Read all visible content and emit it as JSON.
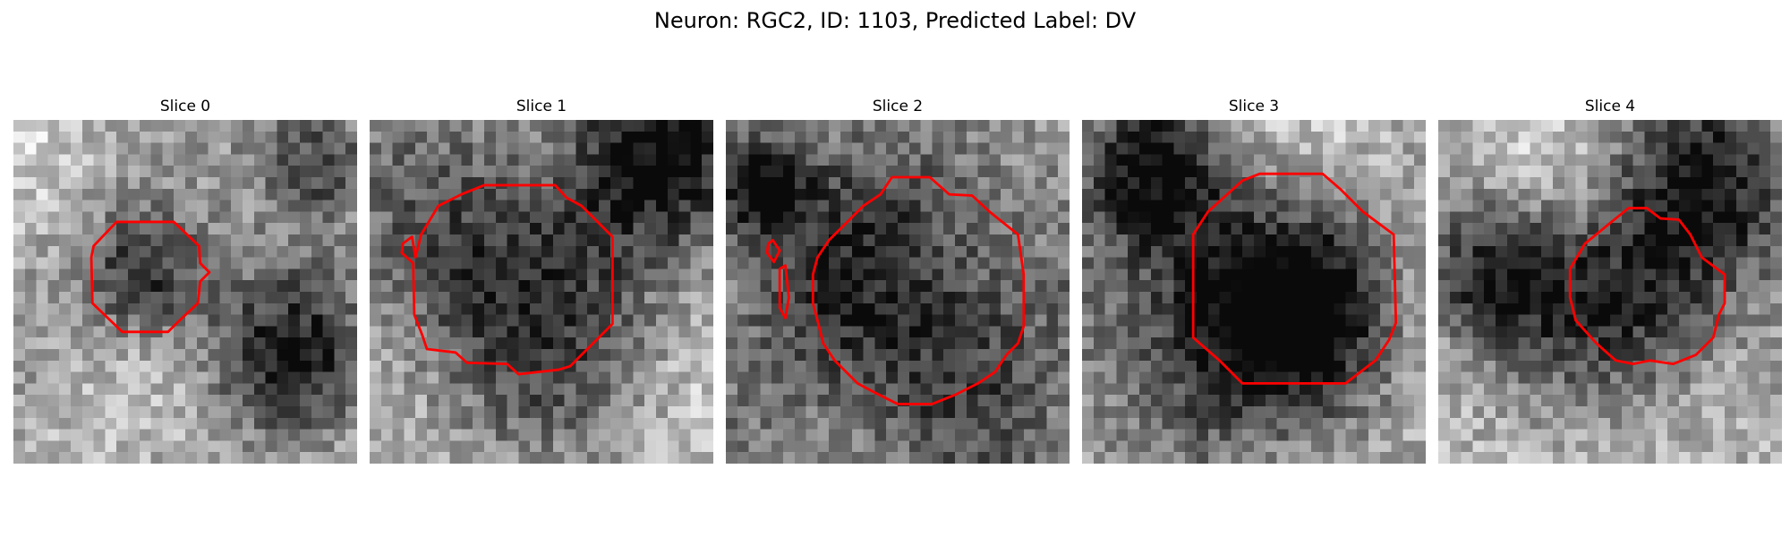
{
  "figure": {
    "title": "Neuron: RGC2, ID: 1103, Predicted Label: DV",
    "contour_color": "#ff0000"
  },
  "slices": [
    {
      "title": "Slice 0",
      "seed": 11,
      "dark_blobs": [
        [
          0.78,
          0.68,
          0.18
        ],
        [
          0.38,
          0.45,
          0.14
        ],
        [
          0.88,
          0.12,
          0.14
        ]
      ]
    },
    {
      "title": "Slice 1",
      "seed": 23,
      "dark_blobs": [
        [
          0.42,
          0.45,
          0.32
        ],
        [
          0.82,
          0.08,
          0.18
        ]
      ]
    },
    {
      "title": "Slice 2",
      "seed": 37,
      "dark_blobs": [
        [
          0.52,
          0.55,
          0.42
        ],
        [
          0.08,
          0.2,
          0.1
        ]
      ]
    },
    {
      "title": "Slice 3",
      "seed": 41,
      "dark_blobs": [
        [
          0.35,
          0.6,
          0.28
        ],
        [
          0.2,
          0.15,
          0.16
        ],
        [
          0.65,
          0.55,
          0.2
        ]
      ]
    },
    {
      "title": "Slice 4",
      "seed": 53,
      "dark_blobs": [
        [
          0.58,
          0.55,
          0.2
        ],
        [
          0.15,
          0.45,
          0.16
        ],
        [
          0.8,
          0.2,
          0.2
        ]
      ]
    }
  ]
}
